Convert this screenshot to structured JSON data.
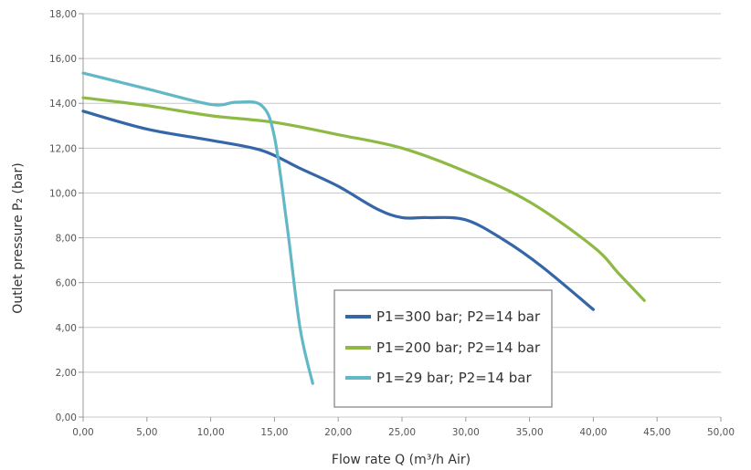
{
  "chart_data": {
    "type": "line",
    "xlabel": "Flow rate Q (m³/h Air)",
    "ylabel": "Outlet pressure P₂ (bar)",
    "xlim": [
      0,
      50
    ],
    "ylim": [
      0,
      18
    ],
    "xticks": [
      0,
      5,
      10,
      15,
      20,
      25,
      30,
      35,
      40,
      45,
      50
    ],
    "yticks": [
      0,
      2,
      4,
      6,
      8,
      10,
      12,
      14,
      16,
      18
    ],
    "xtick_labels": [
      "0,00",
      "5,00",
      "10,00",
      "15,00",
      "20,00",
      "25,00",
      "30,00",
      "35,00",
      "40,00",
      "45,00",
      "50,00"
    ],
    "ytick_labels": [
      "0,00",
      "2,00",
      "4,00",
      "6,00",
      "8,00",
      "10,00",
      "12,00",
      "14,00",
      "16,00",
      "18,00"
    ],
    "grid": "horizontal",
    "legend_position": "lower-center",
    "series": [
      {
        "name": "P1=300 bar; P2=14 bar",
        "color": "#3566a8",
        "x": [
          0,
          5,
          10,
          14,
          17,
          20,
          23,
          25,
          27,
          30,
          33,
          36,
          40
        ],
        "y": [
          13.65,
          12.85,
          12.35,
          11.9,
          11.1,
          10.3,
          9.3,
          8.9,
          8.9,
          8.8,
          7.9,
          6.7,
          4.8
        ]
      },
      {
        "name": "P1=200 bar; P2=14 bar",
        "color": "#8db944",
        "x": [
          0,
          5,
          10,
          15,
          20,
          25,
          30,
          35,
          40,
          42,
          44
        ],
        "y": [
          14.25,
          13.9,
          13.45,
          13.15,
          12.6,
          12.0,
          10.95,
          9.6,
          7.6,
          6.4,
          5.2
        ]
      },
      {
        "name": "P1=29 bar; P2=14 bar",
        "color": "#62b8c5",
        "x": [
          0,
          5,
          10,
          12,
          14,
          15,
          16,
          17,
          18
        ],
        "y": [
          15.35,
          14.65,
          13.95,
          14.05,
          13.9,
          12.5,
          8.5,
          4.0,
          1.5
        ]
      }
    ]
  }
}
